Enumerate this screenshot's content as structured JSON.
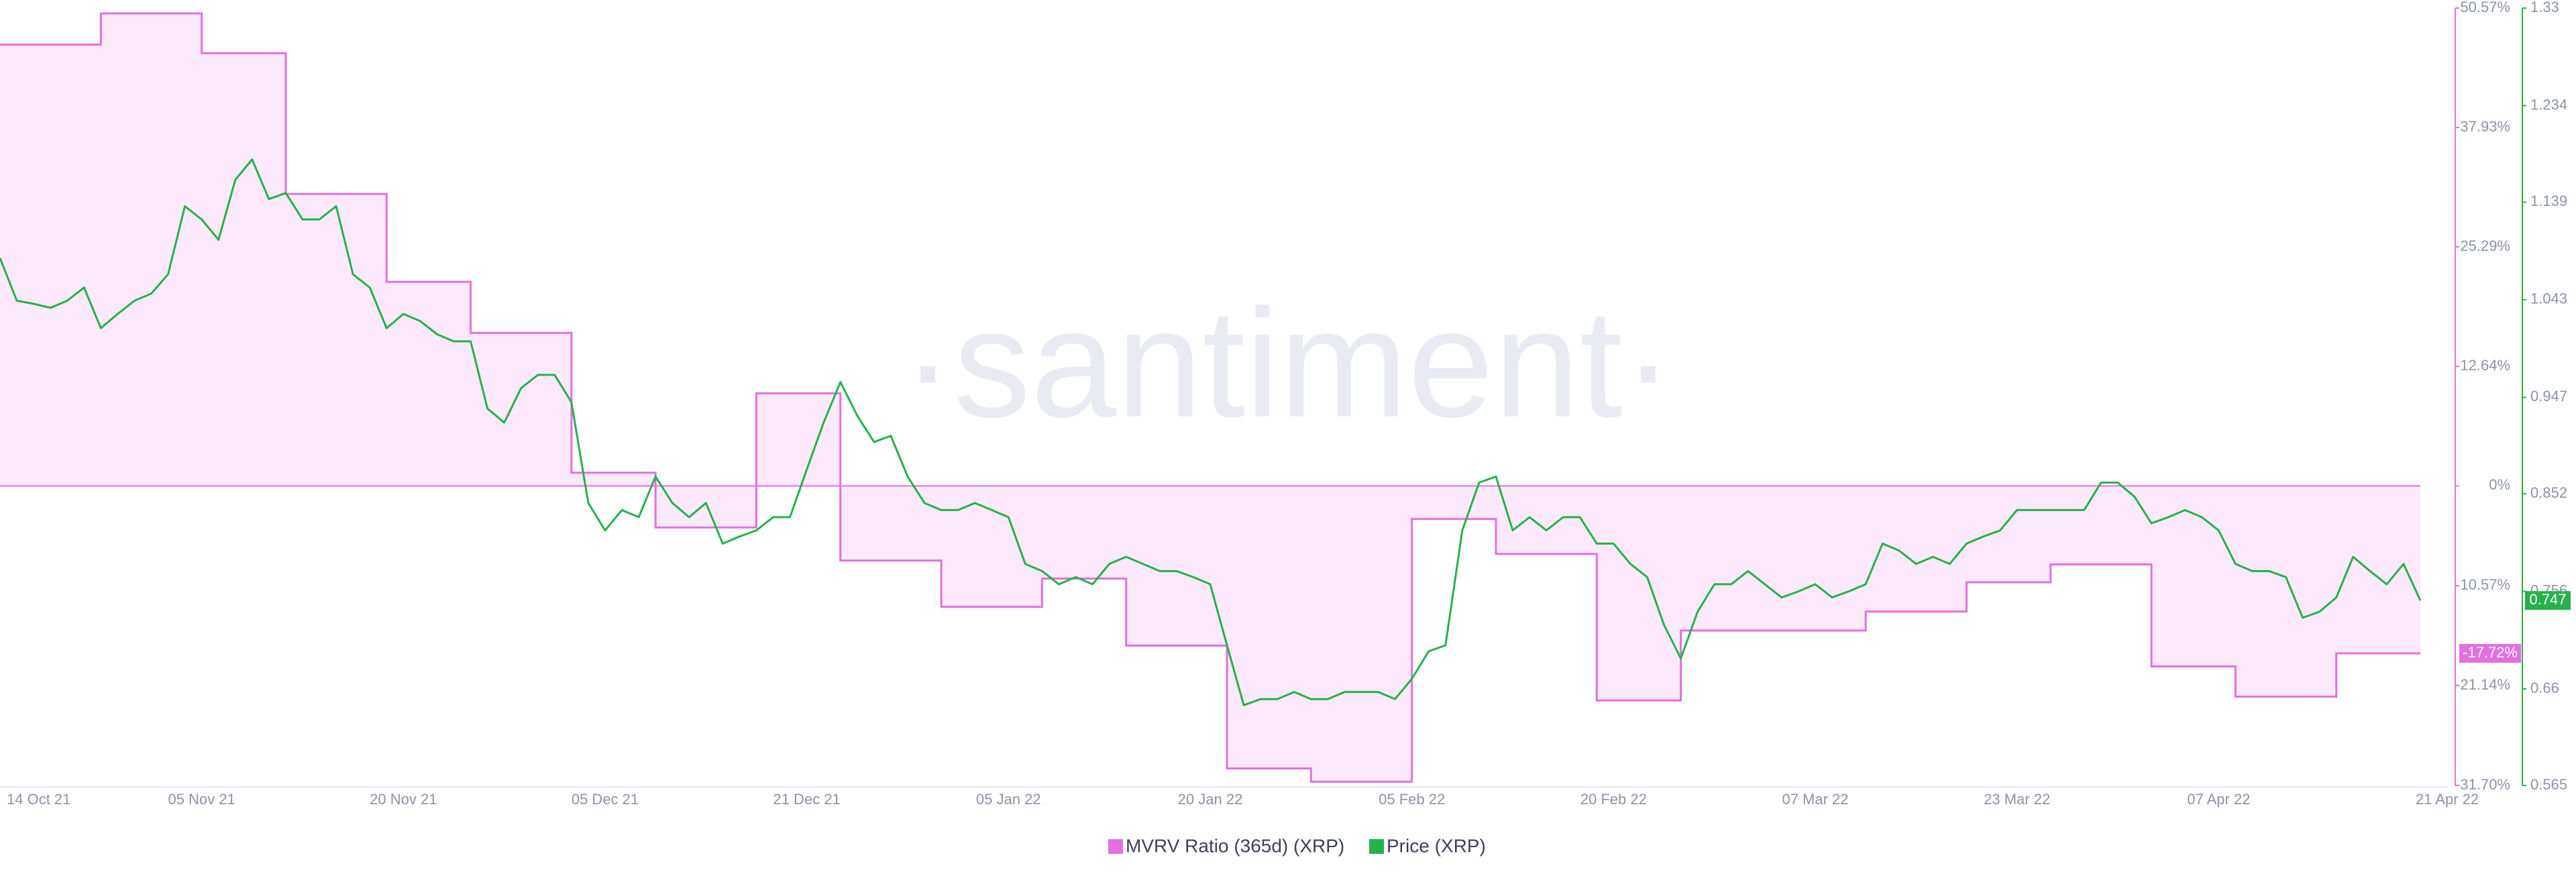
{
  "chart_data": {
    "type": "line",
    "watermark": "·santiment·",
    "categories": [
      "14 Oct 21",
      null,
      null,
      null,
      null,
      null,
      null,
      null,
      null,
      null,
      null,
      null,
      "05 Nov 21",
      null,
      null,
      null,
      null,
      null,
      null,
      null,
      null,
      null,
      null,
      null,
      "20 Nov 21",
      null,
      null,
      null,
      null,
      null,
      null,
      null,
      null,
      null,
      null,
      null,
      "05 Dec 21",
      null,
      null,
      null,
      null,
      null,
      null,
      null,
      null,
      null,
      null,
      null,
      "21 Dec 21",
      null,
      null,
      null,
      null,
      null,
      null,
      null,
      null,
      null,
      null,
      null,
      "05 Jan 22",
      null,
      null,
      null,
      null,
      null,
      null,
      null,
      null,
      null,
      null,
      null,
      "20 Jan 22",
      null,
      null,
      null,
      null,
      null,
      null,
      null,
      null,
      null,
      null,
      null,
      "05 Feb 22",
      null,
      null,
      null,
      null,
      null,
      null,
      null,
      null,
      null,
      null,
      null,
      "20 Feb 22",
      null,
      null,
      null,
      null,
      null,
      null,
      null,
      null,
      null,
      null,
      null,
      "07 Mar 22",
      null,
      null,
      null,
      null,
      null,
      null,
      null,
      null,
      null,
      null,
      null,
      "23 Mar 22",
      null,
      null,
      null,
      null,
      null,
      null,
      null,
      null,
      null,
      null,
      null,
      "07 Apr 22",
      null,
      null,
      null,
      null,
      null,
      null,
      null,
      null,
      null,
      null,
      null,
      "21 Apr 22"
    ],
    "series": [
      {
        "name": "MVRV Ratio (365d) (XRP)",
        "color": "#e46fe0",
        "fill": "#fce9fb",
        "step": true,
        "axis": "y",
        "values": [
          46.7,
          46.7,
          46.7,
          46.7,
          46.7,
          46.7,
          50.0,
          50.0,
          50.0,
          50.0,
          50.0,
          50.0,
          45.8,
          45.8,
          45.8,
          45.8,
          45.8,
          30.9,
          30.9,
          30.9,
          30.9,
          30.9,
          30.9,
          21.6,
          21.6,
          21.6,
          21.6,
          21.6,
          16.2,
          16.2,
          16.2,
          16.2,
          16.2,
          16.2,
          1.4,
          1.4,
          1.4,
          1.4,
          1.4,
          -4.4,
          -4.4,
          -4.4,
          -4.4,
          -4.4,
          -4.4,
          9.8,
          9.8,
          9.8,
          9.8,
          9.8,
          -7.9,
          -7.9,
          -7.9,
          -7.9,
          -7.9,
          -7.9,
          -12.8,
          -12.8,
          -12.8,
          -12.8,
          -12.8,
          -12.8,
          -9.8,
          -9.8,
          -9.8,
          -9.8,
          -9.8,
          -16.9,
          -16.9,
          -16.9,
          -16.9,
          -16.9,
          -16.9,
          -29.9,
          -29.9,
          -29.9,
          -29.9,
          -29.9,
          -31.3,
          -31.3,
          -31.3,
          -31.3,
          -31.3,
          -31.3,
          -3.5,
          -3.5,
          -3.5,
          -3.5,
          -3.5,
          -7.2,
          -7.2,
          -7.2,
          -7.2,
          -7.2,
          -7.2,
          -22.7,
          -22.7,
          -22.7,
          -22.7,
          -22.7,
          -15.3,
          -15.3,
          -15.3,
          -15.3,
          -15.3,
          -15.3,
          -15.3,
          -15.3,
          -15.3,
          -15.3,
          -15.3,
          -13.3,
          -13.3,
          -13.3,
          -13.3,
          -13.3,
          -13.3,
          -10.2,
          -10.2,
          -10.2,
          -10.2,
          -10.2,
          -8.3,
          -8.3,
          -8.3,
          -8.3,
          -8.3,
          -8.3,
          -19.1,
          -19.1,
          -19.1,
          -19.1,
          -19.1,
          -22.3,
          -22.3,
          -22.3,
          -22.3,
          -22.3,
          -22.3,
          -17.72,
          -17.72,
          -17.72,
          -17.72,
          -17.72,
          -17.72
        ],
        "value_labels": [
          null,
          null,
          null,
          null,
          null,
          null,
          null,
          null,
          null,
          null,
          null,
          null,
          null,
          null,
          null,
          null,
          null,
          null,
          null,
          null,
          null,
          null,
          null,
          null,
          null,
          null,
          null,
          null,
          null,
          null,
          null,
          null,
          null,
          null,
          null,
          null,
          null,
          null,
          null,
          null,
          null,
          null,
          null,
          null,
          null,
          null,
          null,
          null,
          null,
          null,
          null,
          null,
          null,
          null,
          null,
          null,
          null,
          null,
          null,
          null,
          null,
          null,
          null,
          null,
          null,
          null,
          null,
          null,
          null,
          null,
          null,
          null,
          null,
          null,
          null,
          null,
          null,
          null,
          null,
          null,
          null,
          null,
          null,
          null,
          null,
          null,
          null,
          null,
          null,
          null,
          null,
          null,
          null,
          null,
          null,
          null,
          null,
          null,
          null,
          null,
          null,
          null,
          null,
          null,
          null,
          null,
          null,
          null,
          null,
          null,
          null,
          null,
          null,
          null,
          null,
          null,
          null,
          null,
          null,
          null,
          null,
          null,
          null,
          null,
          null,
          null,
          null,
          null,
          null,
          null,
          null,
          null,
          null,
          null,
          null,
          null,
          null,
          null,
          null,
          null,
          null,
          null,
          null,
          null,
          "-17.72%"
        ]
      },
      {
        "name": "Price (XRP)",
        "color": "#26b14a",
        "axis": "y2",
        "values": [
          1.084,
          1.042,
          1.039,
          1.035,
          1.042,
          1.055,
          1.015,
          1.029,
          1.042,
          1.049,
          1.068,
          1.135,
          1.122,
          1.102,
          1.161,
          1.181,
          1.142,
          1.148,
          1.122,
          1.122,
          1.135,
          1.068,
          1.055,
          1.015,
          1.029,
          1.022,
          1.009,
          1.002,
          1.002,
          0.936,
          0.922,
          0.956,
          0.969,
          0.969,
          0.942,
          0.843,
          0.816,
          0.836,
          0.829,
          0.869,
          0.843,
          0.829,
          0.843,
          0.803,
          0.81,
          0.816,
          0.829,
          0.829,
          0.876,
          0.922,
          0.962,
          0.929,
          0.903,
          0.909,
          0.869,
          0.843,
          0.836,
          0.836,
          0.843,
          0.836,
          0.829,
          0.783,
          0.776,
          0.763,
          0.77,
          0.763,
          0.783,
          0.79,
          0.783,
          0.776,
          0.776,
          0.77,
          0.763,
          0.703,
          0.644,
          0.65,
          0.65,
          0.657,
          0.65,
          0.65,
          0.657,
          0.657,
          0.657,
          0.65,
          0.67,
          0.697,
          0.703,
          0.816,
          0.863,
          0.869,
          0.816,
          0.829,
          0.816,
          0.829,
          0.829,
          0.803,
          0.803,
          0.783,
          0.77,
          0.723,
          0.69,
          0.736,
          0.763,
          0.763,
          0.776,
          0.763,
          0.75,
          0.756,
          0.763,
          0.75,
          0.756,
          0.763,
          0.803,
          0.796,
          0.783,
          0.79,
          0.783,
          0.803,
          0.81,
          0.816,
          0.836,
          0.836,
          0.836,
          0.836,
          0.836,
          0.863,
          0.863,
          0.849,
          0.823,
          0.829,
          0.836,
          0.829,
          0.816,
          0.783,
          0.776,
          0.776,
          0.77,
          0.73,
          0.736,
          0.75,
          0.79,
          0.776,
          0.763,
          0.783,
          0.747
        ]
      }
    ],
    "ylim": [
      -31.7,
      50.57
    ],
    "yticks": [
      {
        "value": 50.57,
        "label": "50.57%"
      },
      {
        "value": 37.93,
        "label": "37.93%"
      },
      {
        "value": 25.29,
        "label": "25.29%"
      },
      {
        "value": 12.64,
        "label": "12.64%"
      },
      {
        "value": 0,
        "label": "0%"
      },
      {
        "value": -10.57,
        "label": "-10.57%"
      },
      {
        "value": -21.14,
        "label": "-21.14%"
      },
      {
        "value": -31.7,
        "label": "-31.70%"
      }
    ],
    "y2lim": [
      0.565,
      1.33
    ],
    "y2ticks": [
      1.33,
      1.234,
      1.139,
      1.043,
      0.947,
      0.852,
      0.756,
      0.66,
      0.565
    ],
    "grid": false,
    "legend": "bottom"
  }
}
